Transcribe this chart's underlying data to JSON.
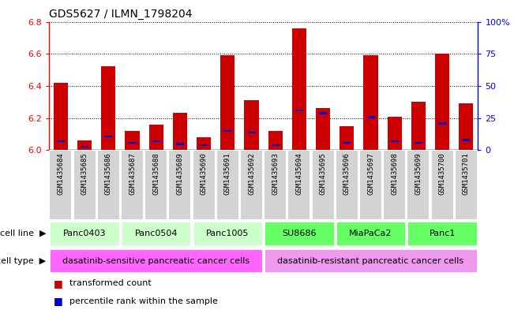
{
  "title": "GDS5627 / ILMN_1798204",
  "samples": [
    "GSM1435684",
    "GSM1435685",
    "GSM1435686",
    "GSM1435687",
    "GSM1435688",
    "GSM1435689",
    "GSM1435690",
    "GSM1435691",
    "GSM1435692",
    "GSM1435693",
    "GSM1435694",
    "GSM1435695",
    "GSM1435696",
    "GSM1435697",
    "GSM1435698",
    "GSM1435699",
    "GSM1435700",
    "GSM1435701"
  ],
  "transformed_count": [
    6.42,
    6.06,
    6.52,
    6.12,
    6.16,
    6.23,
    6.08,
    6.59,
    6.31,
    6.12,
    6.76,
    6.26,
    6.15,
    6.59,
    6.21,
    6.3,
    6.6,
    6.29
  ],
  "percentile_rank": [
    6,
    2,
    10,
    5,
    6,
    4,
    3,
    14,
    13,
    3,
    30,
    28,
    5,
    25,
    6,
    5,
    20,
    7
  ],
  "y_min": 6.0,
  "y_max": 6.8,
  "y_ticks": [
    6.0,
    6.2,
    6.4,
    6.6,
    6.8
  ],
  "right_y_ticks": [
    0,
    25,
    50,
    75,
    100
  ],
  "right_y_labels": [
    "0",
    "25",
    "50",
    "75",
    "100%"
  ],
  "bar_color": "#cc0000",
  "percentile_color": "#0000cc",
  "cell_lines": [
    {
      "label": "Panc0403",
      "start": 0,
      "end": 2
    },
    {
      "label": "Panc0504",
      "start": 3,
      "end": 5
    },
    {
      "label": "Panc1005",
      "start": 6,
      "end": 8
    },
    {
      "label": "SU8686",
      "start": 9,
      "end": 11
    },
    {
      "label": "MiaPaCa2",
      "start": 12,
      "end": 14
    },
    {
      "label": "Panc1",
      "start": 15,
      "end": 17
    }
  ],
  "cell_line_colors": [
    "#ccffcc",
    "#ccffcc",
    "#ccffcc",
    "#66ff66",
    "#66ff66",
    "#66ff66"
  ],
  "cell_types": [
    {
      "label": "dasatinib-sensitive pancreatic cancer cells",
      "start": 0,
      "end": 8,
      "color": "#ff66ff"
    },
    {
      "label": "dasatinib-resistant pancreatic cancer cells",
      "start": 9,
      "end": 17,
      "color": "#ee99ee"
    }
  ],
  "legend_items": [
    {
      "color": "#cc0000",
      "label": "transformed count"
    },
    {
      "color": "#0000cc",
      "label": "percentile rank within the sample"
    }
  ],
  "bg_color": "#d3d3d3"
}
